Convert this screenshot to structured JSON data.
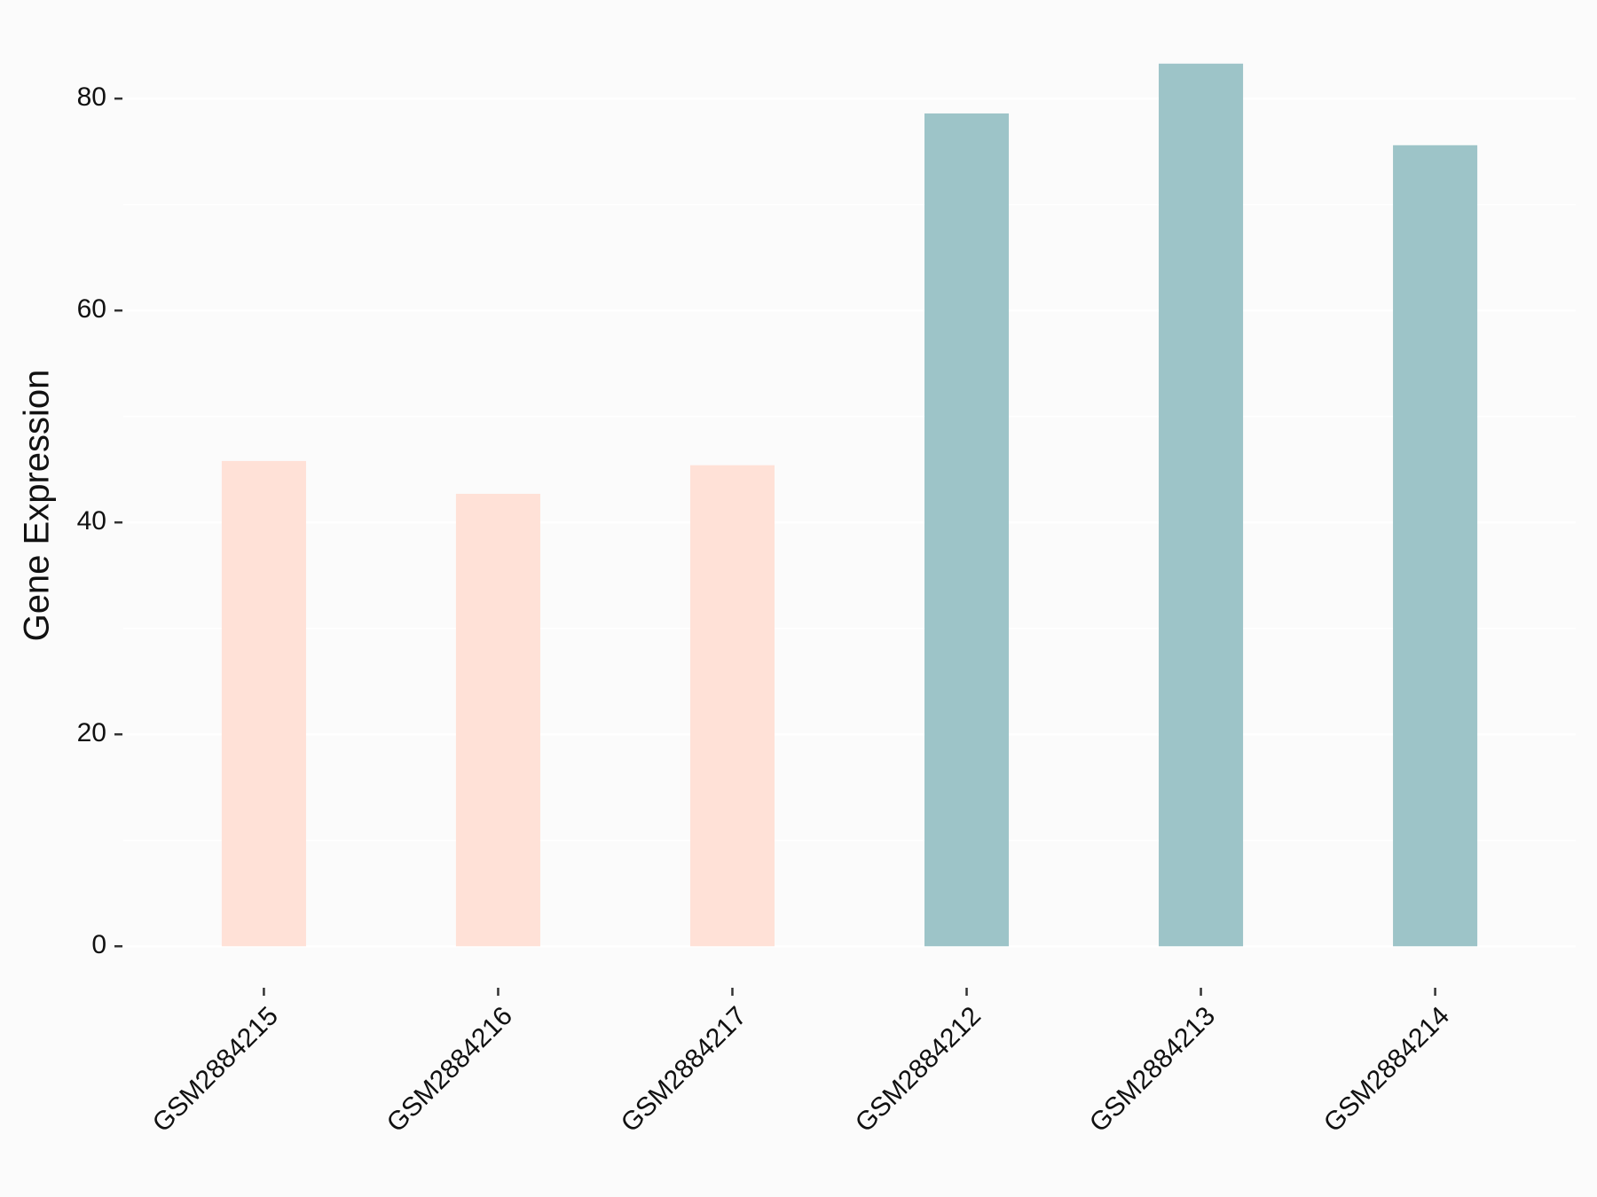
{
  "chart_data": {
    "type": "bar",
    "y_label": "Gene Expression",
    "categories": [
      "GSM2884215",
      "GSM2884216",
      "GSM2884217",
      "GSM2884212",
      "GSM2884213",
      "GSM2884214"
    ],
    "values": [
      45.8,
      42.7,
      45.4,
      78.6,
      83.3,
      75.6
    ],
    "colors": [
      "#ffe1d7",
      "#ffe1d7",
      "#ffe1d7",
      "#9dc4c8",
      "#9dc4c8",
      "#9dc4c8"
    ],
    "ylim": [
      -4.165,
      87.465
    ],
    "yticks": [
      0,
      20,
      40,
      60,
      80
    ],
    "minor_yticks": [
      10,
      30,
      50,
      70
    ],
    "grid": true
  }
}
